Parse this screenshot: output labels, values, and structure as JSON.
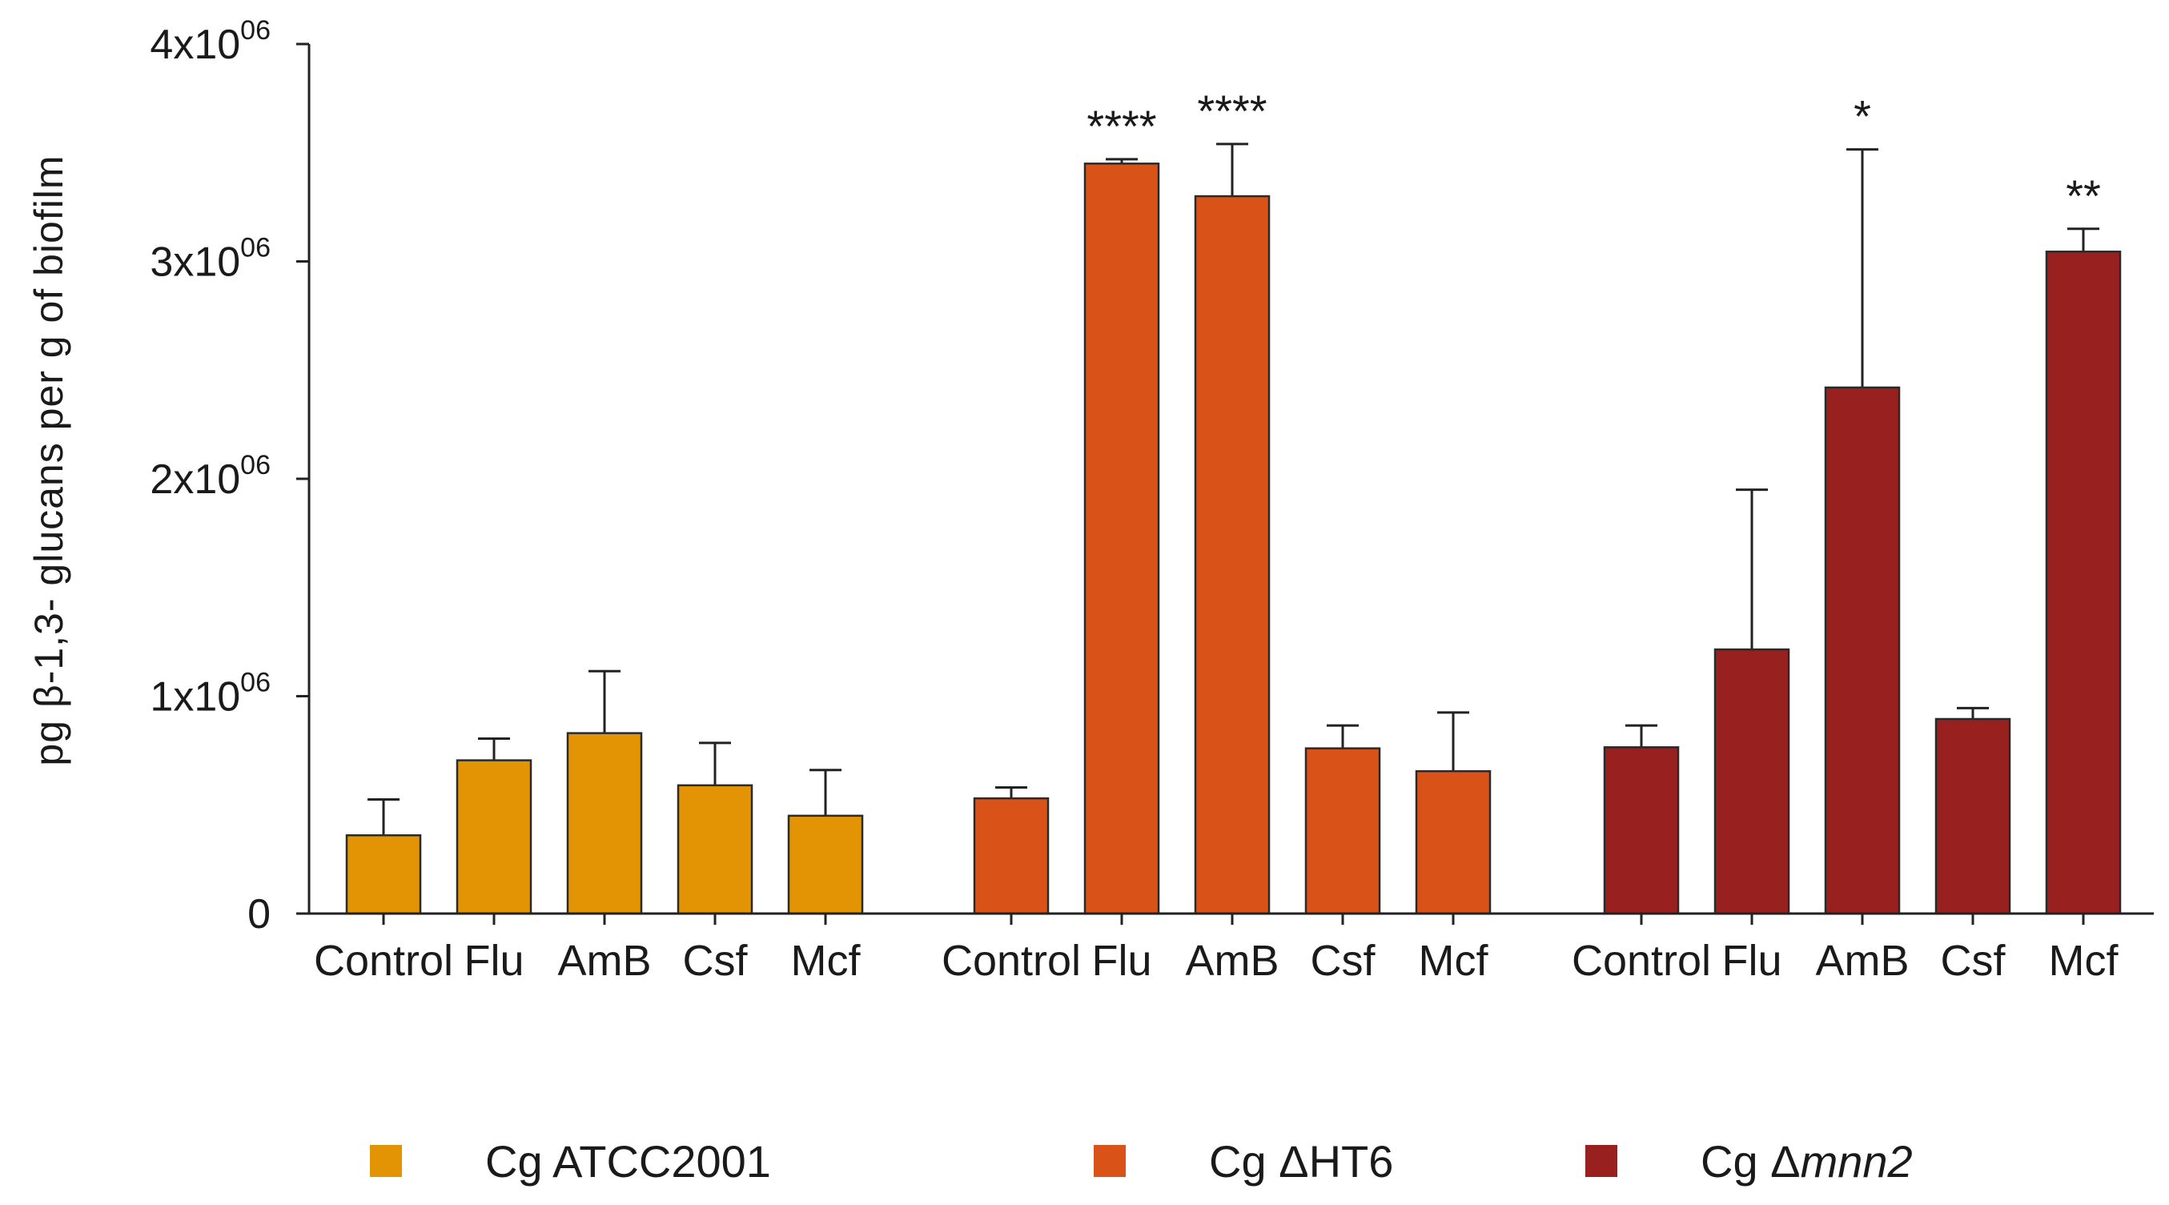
{
  "chart_data": {
    "type": "bar",
    "title": "",
    "xlabel": "",
    "ylabel": "pg β-1,3- glucans per g of biofilm",
    "ylim": [
      0,
      4000000
    ],
    "y_ticks": [
      {
        "value": 0,
        "base": "0",
        "exp": ""
      },
      {
        "value": 1000000,
        "base": "1x10",
        "exp": "06"
      },
      {
        "value": 2000000,
        "base": "2x10",
        "exp": "06"
      },
      {
        "value": 3000000,
        "base": "3x10",
        "exp": "06"
      },
      {
        "value": 4000000,
        "base": "4x10",
        "exp": "06"
      }
    ],
    "categories": [
      "Control",
      "Flu",
      "AmB",
      "Csf",
      "Mcf"
    ],
    "series": [
      {
        "name": "Cg ATCC2001",
        "name_prefix": "Cg ",
        "name_main": "ATCC2001",
        "name_italic": "",
        "color": "#E39404",
        "values": [
          360000,
          705000,
          830000,
          590000,
          450000
        ],
        "errors": [
          165000,
          100000,
          285000,
          195000,
          210000
        ],
        "significance": [
          "",
          "",
          "",
          "",
          ""
        ]
      },
      {
        "name": "Cg ΔHT6",
        "name_prefix": "Cg ",
        "name_main": "ΔHT6",
        "name_italic": "",
        "color": "#D95319",
        "values": [
          530000,
          3450000,
          3300000,
          760000,
          655000
        ],
        "errors": [
          50000,
          20000,
          240000,
          105000,
          270000
        ],
        "significance": [
          "",
          "****",
          "****",
          "",
          ""
        ]
      },
      {
        "name": "Cg Δmnn2",
        "name_prefix": "Cg ",
        "name_main": "Δ",
        "name_italic": "mnn2",
        "color": "#98201E",
        "values": [
          765000,
          1215000,
          2420000,
          895000,
          3045000
        ],
        "errors": [
          100000,
          735000,
          1095000,
          50000,
          105000
        ],
        "significance": [
          "",
          "",
          "*",
          "",
          "**"
        ]
      }
    ],
    "grid": false,
    "legend_position": "bottom"
  }
}
